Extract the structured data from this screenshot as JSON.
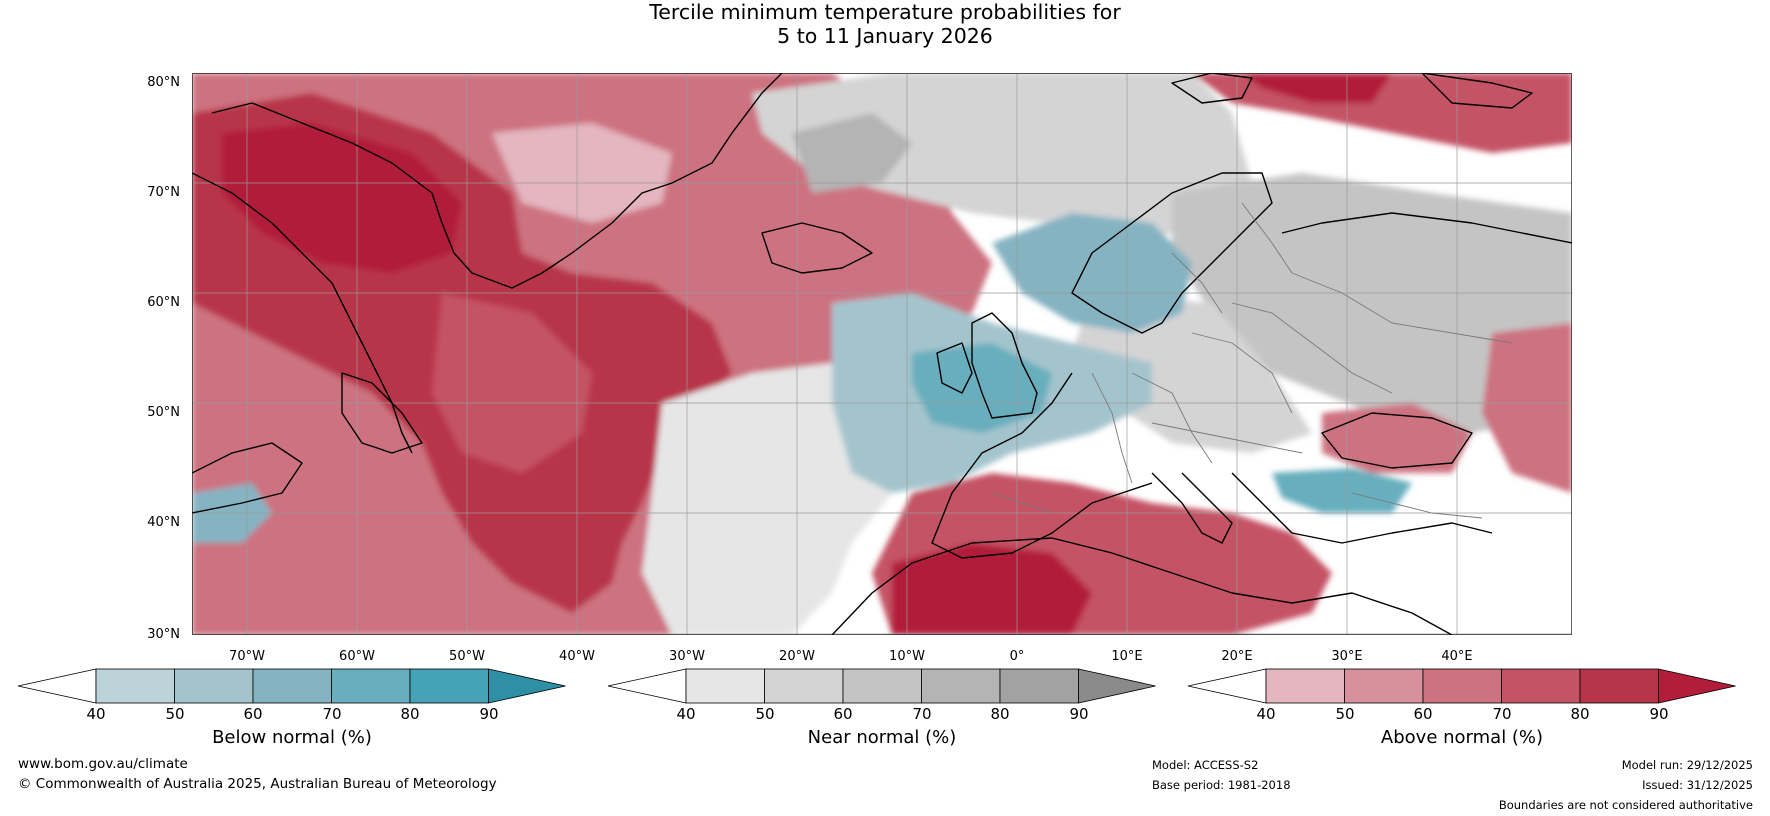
{
  "title": {
    "line1": "Tercile minimum temperature probabilities for",
    "line2": "5 to 11 January 2026"
  },
  "map": {
    "lat_labels": [
      "80°N",
      "70°N",
      "60°N",
      "50°N",
      "40°N",
      "30°N"
    ],
    "lon_labels": [
      "70°W",
      "60°W",
      "50°W",
      "40°W",
      "30°W",
      "20°W",
      "10°W",
      "0°",
      "10°E",
      "20°E",
      "30°E",
      "40°E"
    ],
    "colors": {
      "land_outline": "#000000",
      "borders": "#7a7a7a",
      "gridline": "#9a9a9a"
    }
  },
  "colorbars": [
    {
      "caption": "Below normal (%)",
      "ticks": [
        "40",
        "50",
        "60",
        "70",
        "80",
        "90"
      ],
      "colors": [
        "#ffffff",
        "#bcd3da",
        "#a4c4cd",
        "#85b3c2",
        "#68aebd",
        "#46a2b7",
        "#2e8fa5"
      ]
    },
    {
      "caption": "Near normal (%)",
      "ticks": [
        "40",
        "50",
        "60",
        "70",
        "80",
        "90"
      ],
      "colors": [
        "#ffffff",
        "#e6e6e6",
        "#d4d4d4",
        "#c4c4c4",
        "#b4b4b4",
        "#a2a2a2",
        "#8a8a8a"
      ]
    },
    {
      "caption": "Above normal (%)",
      "ticks": [
        "40",
        "50",
        "60",
        "70",
        "80",
        "90"
      ],
      "colors": [
        "#ffffff",
        "#e4b6bf",
        "#d7919d",
        "#cd7280",
        "#c45365",
        "#b8344a",
        "#b21e3a"
      ]
    }
  ],
  "footer": {
    "url": "www.bom.gov.au/climate",
    "copyright": "© Commonwealth of Australia 2025, Australian Bureau of Meteorology",
    "model": "Model: ACCESS-S2",
    "base_period": "Base period: 1981-2018",
    "model_run": "Model run: 29/12/2025",
    "issued": "Issued: 31/12/2025",
    "disclaimer": "Boundaries are not considered authoritative"
  }
}
